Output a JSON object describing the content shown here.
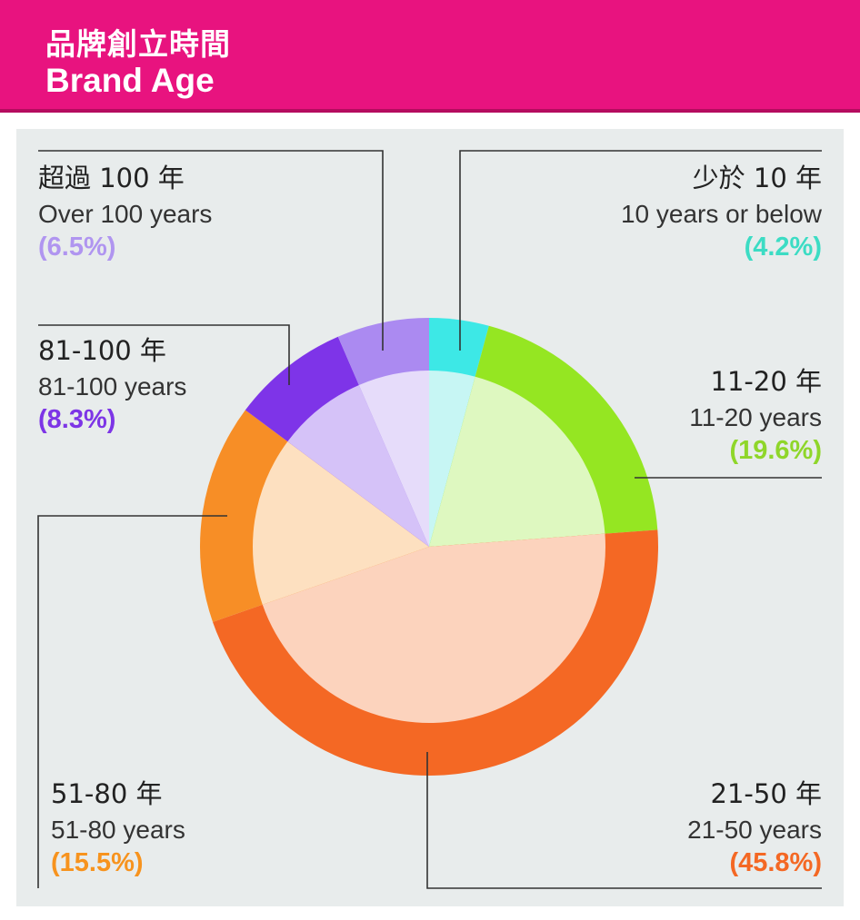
{
  "header": {
    "title_zh": "品牌創立時間",
    "title_en": "Brand Age"
  },
  "chart_data": {
    "type": "pie",
    "title": "品牌創立時間 Brand Age",
    "start_angle_deg": 0,
    "direction": "clockwise",
    "slices": [
      {
        "label_zh": "少於 10 年",
        "label_en": "10 years or below",
        "value": 4.2,
        "pct_text": "(4.2%)",
        "outer_color": "#3de8e6",
        "inner_color": "#c7f6f4"
      },
      {
        "label_zh": "11-20 年",
        "label_en": "11-20 years",
        "value": 19.6,
        "pct_text": "(19.6%)",
        "outer_color": "#95e622",
        "inner_color": "#def8c0"
      },
      {
        "label_zh": "21-50 年",
        "label_en": "21-50 years",
        "value": 45.8,
        "pct_text": "(45.8%)",
        "outer_color": "#f46824",
        "inner_color": "#fcd3bd"
      },
      {
        "label_zh": "51-80 年",
        "label_en": "51-80 years",
        "value": 15.5,
        "pct_text": "(15.5%)",
        "outer_color": "#f78e26",
        "inner_color": "#fde0c0"
      },
      {
        "label_zh": "81-100 年",
        "label_en": "81-100 years",
        "value": 8.3,
        "pct_text": "(8.3%)",
        "outer_color": "#7e34e8",
        "inner_color": "#d5c2f8"
      },
      {
        "label_zh": "超過 100 年",
        "label_en": "Over 100 years",
        "value": 6.5,
        "pct_text": "(6.5%)",
        "outer_color": "#ab8af1",
        "inner_color": "#e6dcfa"
      }
    ]
  },
  "colors": {
    "header_bg": "#e8137f",
    "panel_bg": "#e8ecec",
    "pct_10_or_below": "#3cdcc4",
    "pct_11_20": "#8fd62a",
    "pct_21_50": "#f46824",
    "pct_51_80": "#f7931e",
    "pct_81_100": "#7d35e6",
    "pct_over_100": "#b095f0"
  }
}
